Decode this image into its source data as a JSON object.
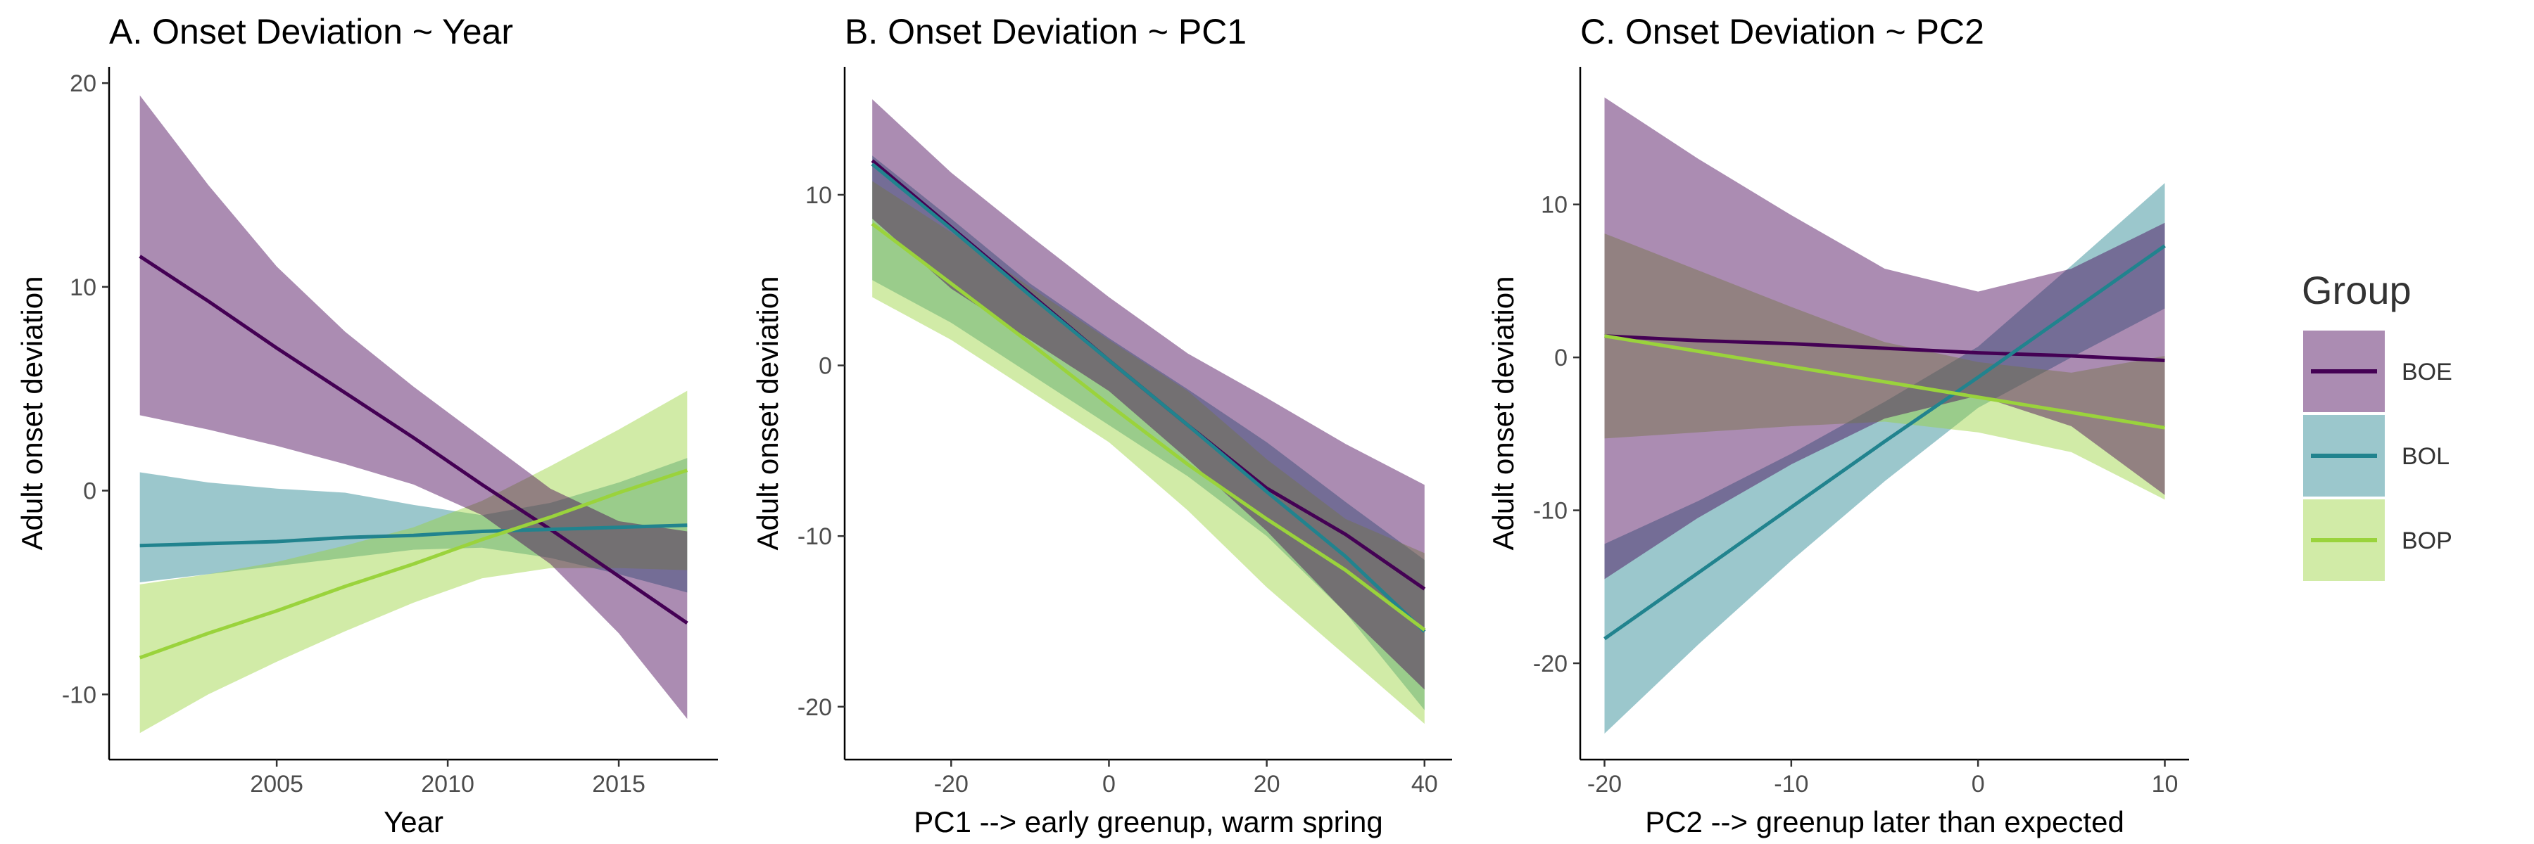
{
  "colors": {
    "BOE": "#440154",
    "BOL": "#21838e",
    "BOP": "#9ad33c",
    "band_BOE": "#9471a8",
    "band_BOL": "#7fb8c2",
    "band_BOP": "#c8e989"
  },
  "legend": {
    "title": "Group",
    "placement": "right",
    "items": [
      {
        "key": "BOE",
        "label": "BOE"
      },
      {
        "key": "BOL",
        "label": "BOL"
      },
      {
        "key": "BOP",
        "label": "BOP"
      }
    ]
  },
  "chart_data": [
    {
      "type": "line",
      "title": "A. Onset Deviation ~ Year",
      "xlabel": "Year",
      "ylabel": "Adult onset deviation",
      "xlim": [
        2000.1,
        2017.9
      ],
      "ylim": [
        -13.2,
        20.8
      ],
      "xticks": [
        2005,
        2010,
        2015
      ],
      "yticks": [
        -10,
        0,
        10,
        20
      ],
      "grid": false,
      "series": [
        {
          "name": "BOE",
          "x": [
            2001,
            2003,
            2005,
            2007,
            2009,
            2011,
            2013,
            2015,
            2017
          ],
          "y": [
            11.5,
            9.3,
            7.0,
            4.8,
            2.6,
            0.3,
            -1.9,
            -4.2,
            -6.5
          ],
          "lower": [
            3.7,
            3.0,
            2.2,
            1.3,
            0.3,
            -1.2,
            -3.6,
            -7.0,
            -11.2
          ],
          "upper": [
            19.4,
            15.0,
            11.0,
            7.8,
            5.1,
            2.6,
            0.1,
            -1.5,
            -2.0
          ]
        },
        {
          "name": "BOL",
          "x": [
            2001,
            2003,
            2005,
            2007,
            2009,
            2011,
            2013,
            2015,
            2017
          ],
          "y": [
            -2.7,
            -2.6,
            -2.5,
            -2.3,
            -2.2,
            -2.0,
            -1.9,
            -1.8,
            -1.7
          ],
          "lower": [
            -4.5,
            -4.1,
            -3.7,
            -3.3,
            -2.9,
            -2.8,
            -3.3,
            -4.1,
            -5.0
          ],
          "upper": [
            0.9,
            0.4,
            0.1,
            -0.1,
            -0.7,
            -1.2,
            -0.6,
            0.4,
            1.6
          ]
        },
        {
          "name": "BOP",
          "x": [
            2001,
            2003,
            2005,
            2007,
            2009,
            2011,
            2013,
            2015,
            2017
          ],
          "y": [
            -8.2,
            -7.0,
            -5.9,
            -4.7,
            -3.6,
            -2.4,
            -1.3,
            -0.1,
            1.0
          ],
          "lower": [
            -11.9,
            -10.0,
            -8.4,
            -6.9,
            -5.5,
            -4.3,
            -3.8,
            -3.8,
            -3.9
          ],
          "upper": [
            -4.6,
            -4.1,
            -3.5,
            -2.7,
            -1.8,
            -0.5,
            1.2,
            3.0,
            4.9
          ]
        }
      ]
    },
    {
      "type": "line",
      "title": "B. Onset Deviation ~ PC1",
      "xlabel": "PC1 --> early greenup, warm spring",
      "ylabel": "Adult onset deviation",
      "xlim": [
        -33.5,
        43.5
      ],
      "ylim": [
        -23.1,
        17.5
      ],
      "xticks": [
        -20,
        0,
        20,
        40
      ],
      "yticks": [
        -20,
        -10,
        0,
        10
      ],
      "grid": false,
      "series": [
        {
          "name": "BOE",
          "x": [
            -30,
            -20,
            -10,
            0,
            10,
            20,
            30,
            40
          ],
          "y": [
            12.0,
            8.1,
            4.2,
            0.3,
            -3.5,
            -7.2,
            -9.9,
            -13.1
          ],
          "lower": [
            8.6,
            4.5,
            1.5,
            -1.5,
            -5.5,
            -9.7,
            -14.5,
            -19.0
          ],
          "upper": [
            15.6,
            11.3,
            7.6,
            4.0,
            0.7,
            -1.9,
            -4.6,
            -7.0
          ]
        },
        {
          "name": "BOL",
          "x": [
            -30,
            -20,
            -10,
            0,
            10,
            20,
            30,
            40
          ],
          "y": [
            11.8,
            8.0,
            4.1,
            0.3,
            -3.5,
            -7.4,
            -11.2,
            -15.6
          ],
          "lower": [
            5.0,
            2.5,
            -0.5,
            -3.5,
            -6.5,
            -10.0,
            -14.5,
            -20.2
          ],
          "upper": [
            12.3,
            8.6,
            4.8,
            1.6,
            -1.4,
            -4.5,
            -8.0,
            -11.4
          ]
        },
        {
          "name": "BOP",
          "x": [
            -30,
            -20,
            -10,
            0,
            10,
            20,
            30,
            40
          ],
          "y": [
            8.3,
            4.8,
            1.3,
            -2.3,
            -5.8,
            -9.0,
            -12.0,
            -15.5
          ],
          "lower": [
            4.0,
            1.5,
            -1.5,
            -4.5,
            -8.5,
            -13.0,
            -17.0,
            -21.0
          ],
          "upper": [
            10.8,
            7.8,
            4.6,
            1.5,
            -1.5,
            -5.5,
            -9.0,
            -11.0
          ]
        }
      ]
    },
    {
      "type": "line",
      "title": "C. Onset Deviation ~ PC2",
      "xlabel": "PC2 --> greenup later than expected",
      "ylabel": "Adult onset deviation",
      "xlim": [
        -21.3,
        11.3
      ],
      "ylim": [
        -26.3,
        19.0
      ],
      "xticks": [
        -20,
        -10,
        0,
        10
      ],
      "yticks": [
        -20,
        -10,
        0,
        10
      ],
      "grid": false,
      "series": [
        {
          "name": "BOE",
          "x": [
            -20,
            -15,
            -10,
            -5,
            0,
            5,
            10
          ],
          "y": [
            1.4,
            1.1,
            0.9,
            0.6,
            0.3,
            0.1,
            -0.2
          ],
          "lower": [
            -14.5,
            -10.5,
            -7.0,
            -4.0,
            -2.5,
            -4.5,
            -9.0
          ],
          "upper": [
            17.0,
            13.0,
            9.3,
            5.8,
            4.3,
            5.8,
            8.8
          ]
        },
        {
          "name": "BOL",
          "x": [
            -20,
            -15,
            -10,
            -5,
            0,
            5,
            10
          ],
          "y": [
            -18.4,
            -14.1,
            -9.8,
            -5.5,
            -1.3,
            3.0,
            7.3
          ],
          "lower": [
            -24.6,
            -18.8,
            -13.3,
            -8.1,
            -3.3,
            0.0,
            3.2
          ],
          "upper": [
            -12.2,
            -9.4,
            -6.3,
            -2.9,
            0.7,
            6.0,
            11.4
          ]
        },
        {
          "name": "BOP",
          "x": [
            -20,
            -15,
            -10,
            -5,
            0,
            5,
            10
          ],
          "y": [
            1.4,
            0.4,
            -0.6,
            -1.6,
            -2.6,
            -3.6,
            -4.6
          ],
          "lower": [
            -5.3,
            -4.9,
            -4.5,
            -4.2,
            -4.9,
            -6.2,
            -9.3
          ],
          "upper": [
            8.1,
            5.7,
            3.3,
            1.0,
            -0.3,
            -1.0,
            0.1
          ]
        }
      ]
    }
  ]
}
